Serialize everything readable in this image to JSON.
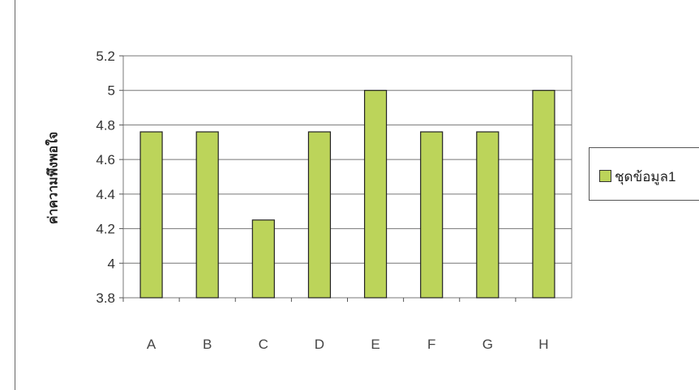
{
  "chart_data": {
    "type": "bar",
    "categories": [
      "A",
      "B",
      "C",
      "D",
      "E",
      "F",
      "G",
      "H"
    ],
    "series": [
      {
        "name": "ชุดข้อมูล1",
        "values": [
          4.76,
          4.76,
          4.25,
          4.76,
          5.0,
          4.76,
          4.76,
          5.0
        ]
      }
    ],
    "yticks": [
      "3.8",
      "4",
      "4.2",
      "4.4",
      "4.6",
      "4.8",
      "5",
      "5.2"
    ],
    "ylim": [
      3.8,
      5.2
    ],
    "title": "",
    "xlabel": "",
    "ylabel": "ค่าความพึงพอใจ",
    "grid": true,
    "legend_position": "right",
    "colors": {
      "bar_fill": "#bcd45a",
      "bar_stroke": "#222222",
      "grid": "#777777"
    }
  }
}
